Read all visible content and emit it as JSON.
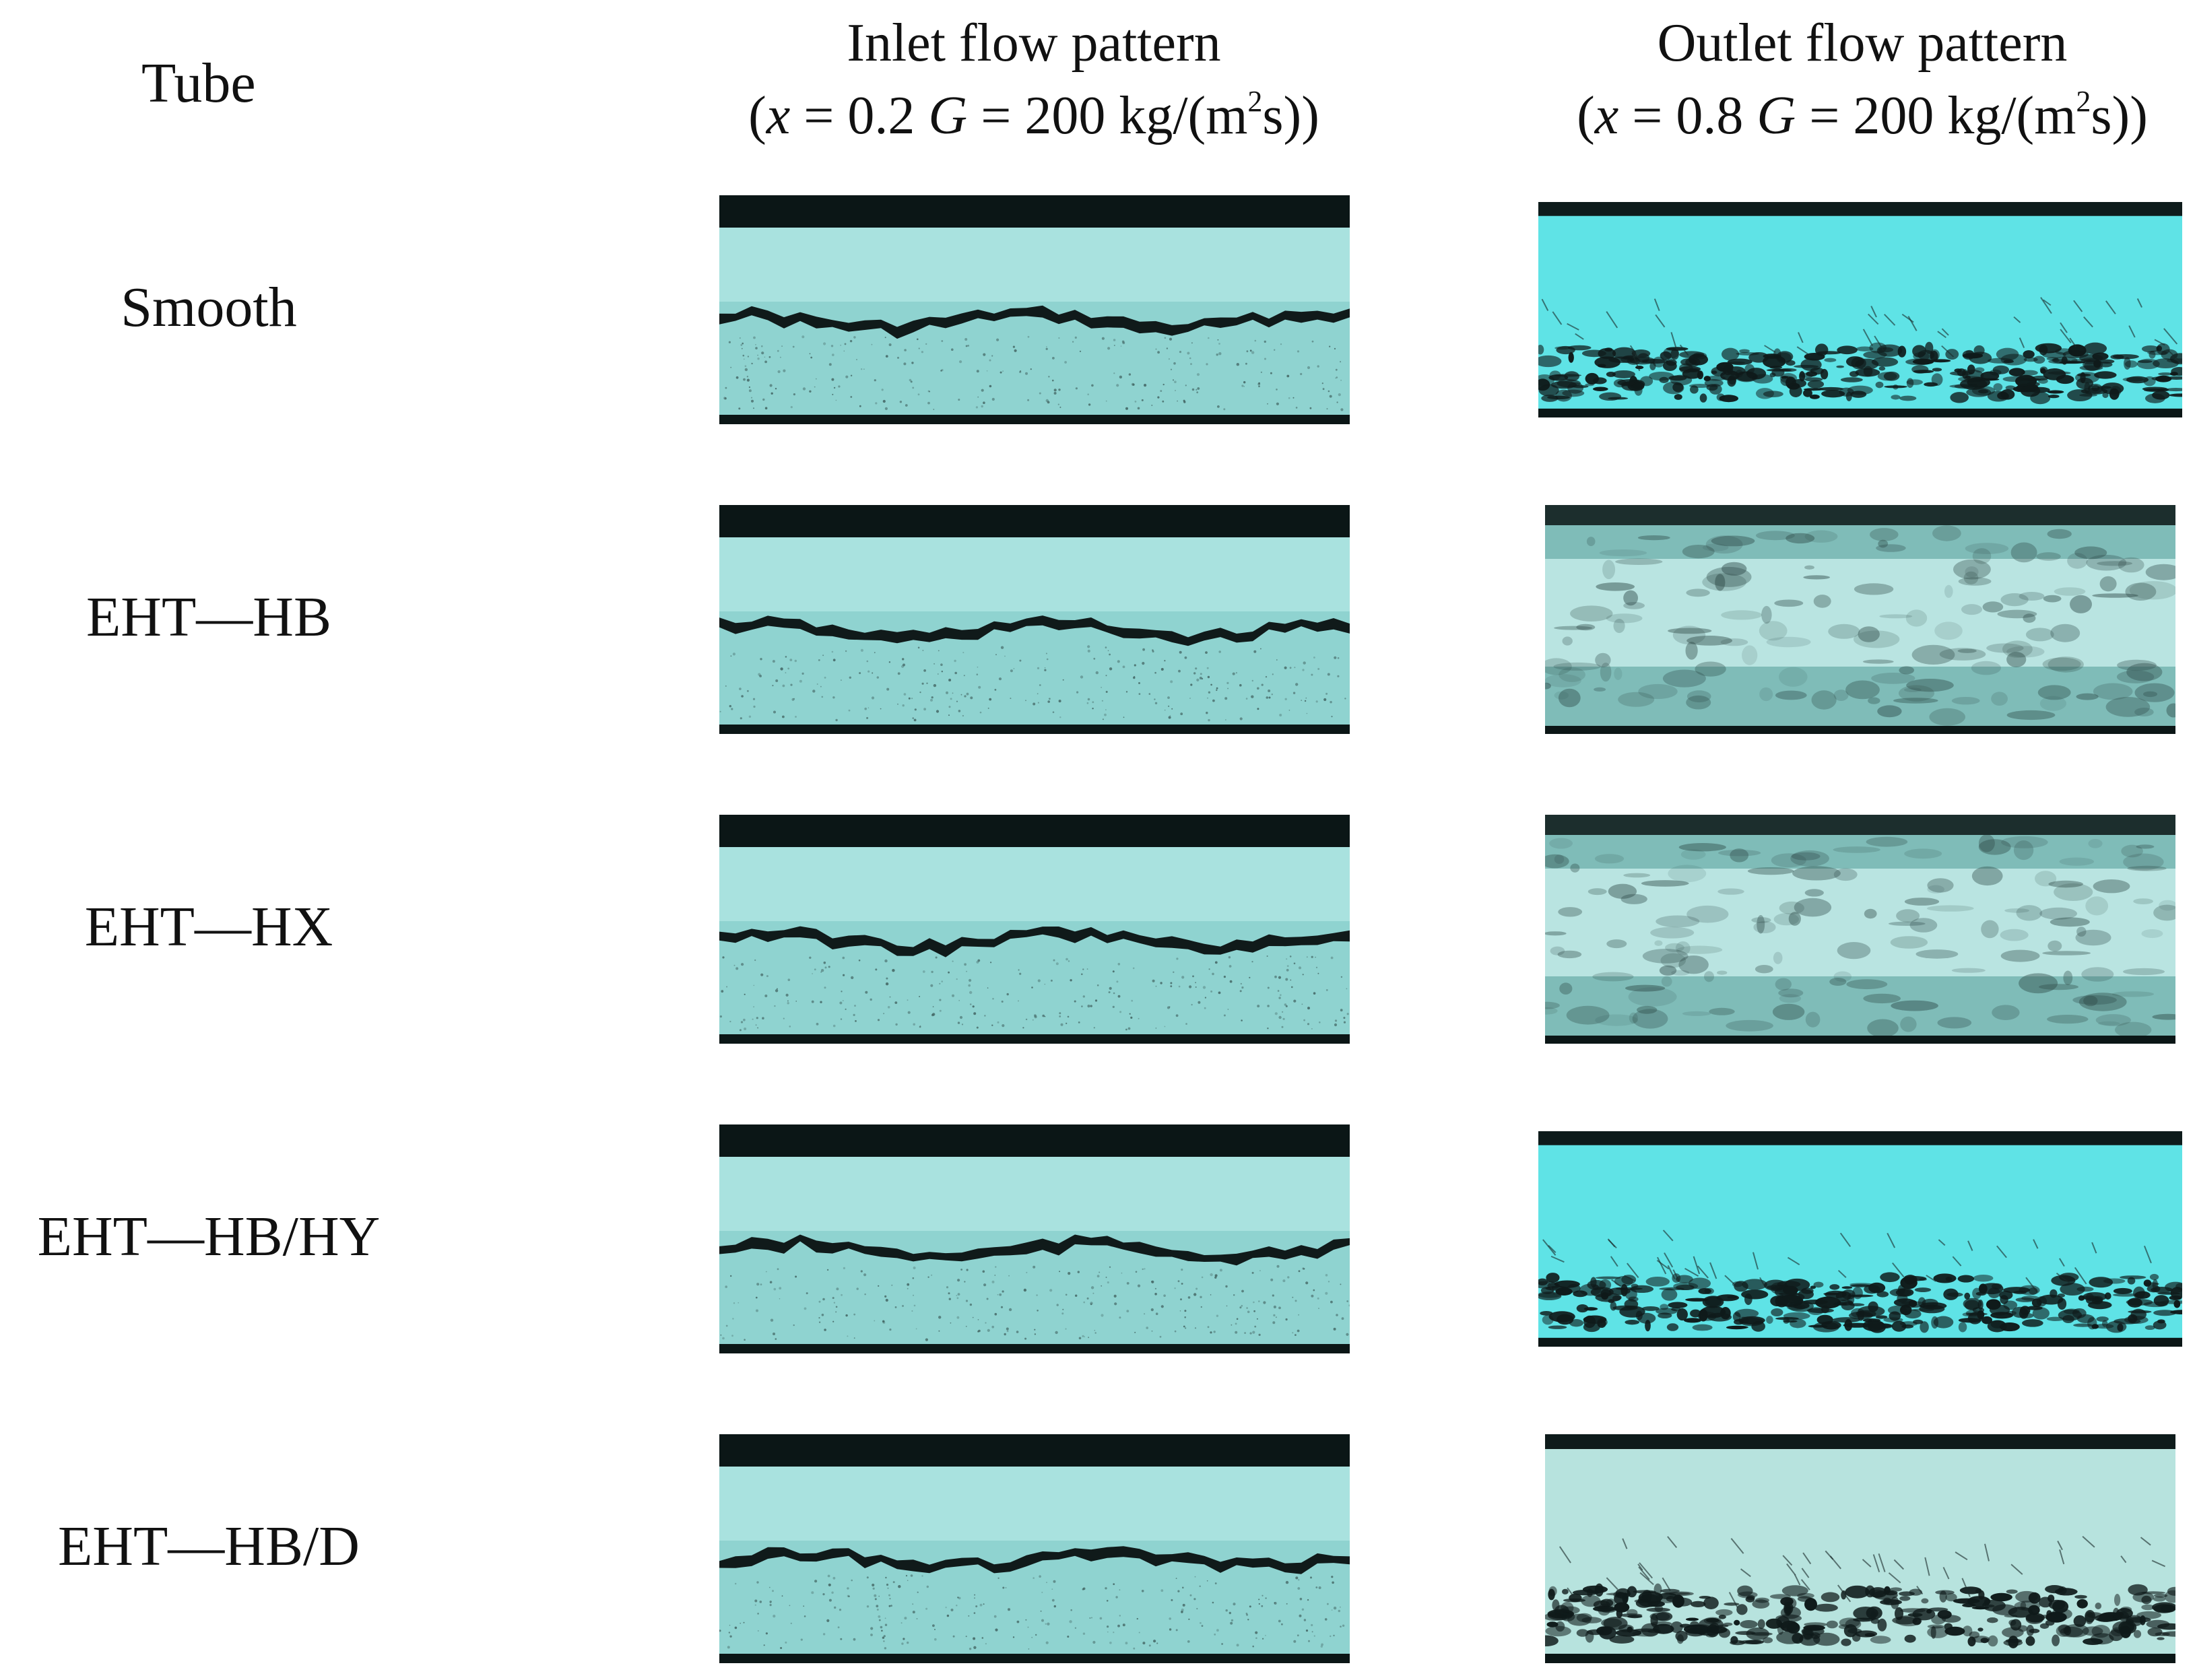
{
  "headers": {
    "tube": "Tube",
    "inlet_title": "Inlet flow pattern",
    "inlet_x_sym": "x",
    "inlet_x_val": " = 0.2 ",
    "inlet_g_sym": "G",
    "inlet_g_val": " = 200 kg/(m",
    "inlet_exp": "2",
    "inlet_tail": "s))",
    "outlet_title": "Outlet flow pattern",
    "outlet_x_sym": "x",
    "outlet_x_val": " = 0.8 ",
    "outlet_g_sym": "G",
    "outlet_g_val": " = 200 kg/(m",
    "outlet_exp": "2",
    "outlet_tail": "s))"
  },
  "rows": [
    {
      "label": "Smooth",
      "outlet_style": "stratified-wavy-bright"
    },
    {
      "label": "EHT—HB",
      "outlet_style": "annular-turbulent"
    },
    {
      "label": "EHT—HX",
      "outlet_style": "annular-turbulent"
    },
    {
      "label": "EHT—HB/HY",
      "outlet_style": "stratified-wavy-bright"
    },
    {
      "label": "EHT—HB/D",
      "outlet_style": "stratified-wavy"
    }
  ],
  "colors": {
    "liquid": "#8fd3d0",
    "vapor": "#a9e2df",
    "vapor_bright": "#5fe3e6",
    "wall": "#0b1616",
    "interface": "#101a1a"
  }
}
